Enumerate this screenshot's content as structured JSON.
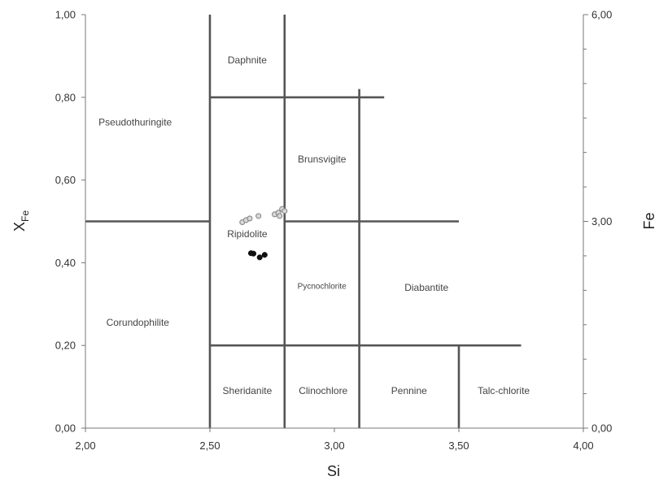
{
  "chart_data": {
    "type": "scatter",
    "title": "",
    "xlabel": "Si",
    "ylabel_main": "X",
    "ylabel_sub": "Fe",
    "y2label": "Fe",
    "xlim": [
      2.0,
      4.0
    ],
    "ylim": [
      0.0,
      1.0
    ],
    "y2lim": [
      0.0,
      6.0
    ],
    "x_ticks": [
      2.0,
      2.5,
      3.0,
      3.5,
      4.0
    ],
    "x_tick_labels": [
      "2,00",
      "2,50",
      "3,00",
      "3,50",
      "4,00"
    ],
    "y_ticks": [
      0.0,
      0.2,
      0.4,
      0.6,
      0.8,
      1.0
    ],
    "y_tick_labels": [
      "0,00",
      "0,20",
      "0,40",
      "0,60",
      "0,80",
      "1,00"
    ],
    "y2_ticks": [
      0.0,
      3.0,
      6.0
    ],
    "y2_tick_labels": [
      "0,00",
      "3,00",
      "6,00"
    ],
    "y2_minor_ticks": [
      0.5,
      1.0,
      1.5,
      2.0,
      2.5,
      3.5,
      4.0,
      4.5,
      5.0,
      5.5
    ],
    "grid": false,
    "boundaries": [
      {
        "x1": 2.5,
        "y1": 0.0,
        "x2": 2.5,
        "y2": 1.0
      },
      {
        "x1": 2.8,
        "y1": 0.0,
        "x2": 2.8,
        "y2": 1.0
      },
      {
        "x1": 3.1,
        "y1": 0.0,
        "x2": 3.1,
        "y2": 0.82
      },
      {
        "x1": 3.5,
        "y1": 0.0,
        "x2": 3.5,
        "y2": 0.2
      },
      {
        "x1": 2.0,
        "y1": 0.5,
        "x2": 2.5,
        "y2": 0.5
      },
      {
        "x1": 2.8,
        "y1": 0.5,
        "x2": 3.5,
        "y2": 0.5
      },
      {
        "x1": 2.5,
        "y1": 0.8,
        "x2": 3.2,
        "y2": 0.8
      },
      {
        "x1": 2.5,
        "y1": 0.2,
        "x2": 3.75,
        "y2": 0.2
      }
    ],
    "region_labels": [
      {
        "text": "Daphnite",
        "x": 2.65,
        "y": 0.89,
        "small": false
      },
      {
        "text": "Pseudothuringite",
        "x": 2.2,
        "y": 0.74,
        "small": false
      },
      {
        "text": "Brunsvigite",
        "x": 2.95,
        "y": 0.65,
        "small": false
      },
      {
        "text": "Ripidolite",
        "x": 2.65,
        "y": 0.47,
        "small": false
      },
      {
        "text": "Pycnochlorite",
        "x": 2.95,
        "y": 0.345,
        "small": true
      },
      {
        "text": "Diabantite",
        "x": 3.37,
        "y": 0.34,
        "small": false
      },
      {
        "text": "Corundophilite",
        "x": 2.21,
        "y": 0.255,
        "small": false
      },
      {
        "text": "Sheridanite",
        "x": 2.65,
        "y": 0.09,
        "small": false
      },
      {
        "text": "Clinochlore",
        "x": 2.955,
        "y": 0.09,
        "small": false
      },
      {
        "text": "Pennine",
        "x": 3.3,
        "y": 0.09,
        "small": false
      },
      {
        "text": "Talc-chlorite",
        "x": 3.68,
        "y": 0.09,
        "small": false
      }
    ],
    "series": [
      {
        "marker": "open-circle",
        "color": "#888888",
        "points": [
          {
            "x": 2.63,
            "y": 0.498
          },
          {
            "x": 2.645,
            "y": 0.503
          },
          {
            "x": 2.66,
            "y": 0.507
          },
          {
            "x": 2.695,
            "y": 0.513
          },
          {
            "x": 2.76,
            "y": 0.517
          },
          {
            "x": 2.775,
            "y": 0.521
          },
          {
            "x": 2.78,
            "y": 0.513
          },
          {
            "x": 2.79,
            "y": 0.53
          },
          {
            "x": 2.8,
            "y": 0.525
          }
        ]
      },
      {
        "marker": "filled-circle",
        "color": "#111111",
        "points": [
          {
            "x": 2.665,
            "y": 0.423
          },
          {
            "x": 2.675,
            "y": 0.422
          },
          {
            "x": 2.7,
            "y": 0.413
          },
          {
            "x": 2.72,
            "y": 0.419
          }
        ]
      }
    ]
  }
}
